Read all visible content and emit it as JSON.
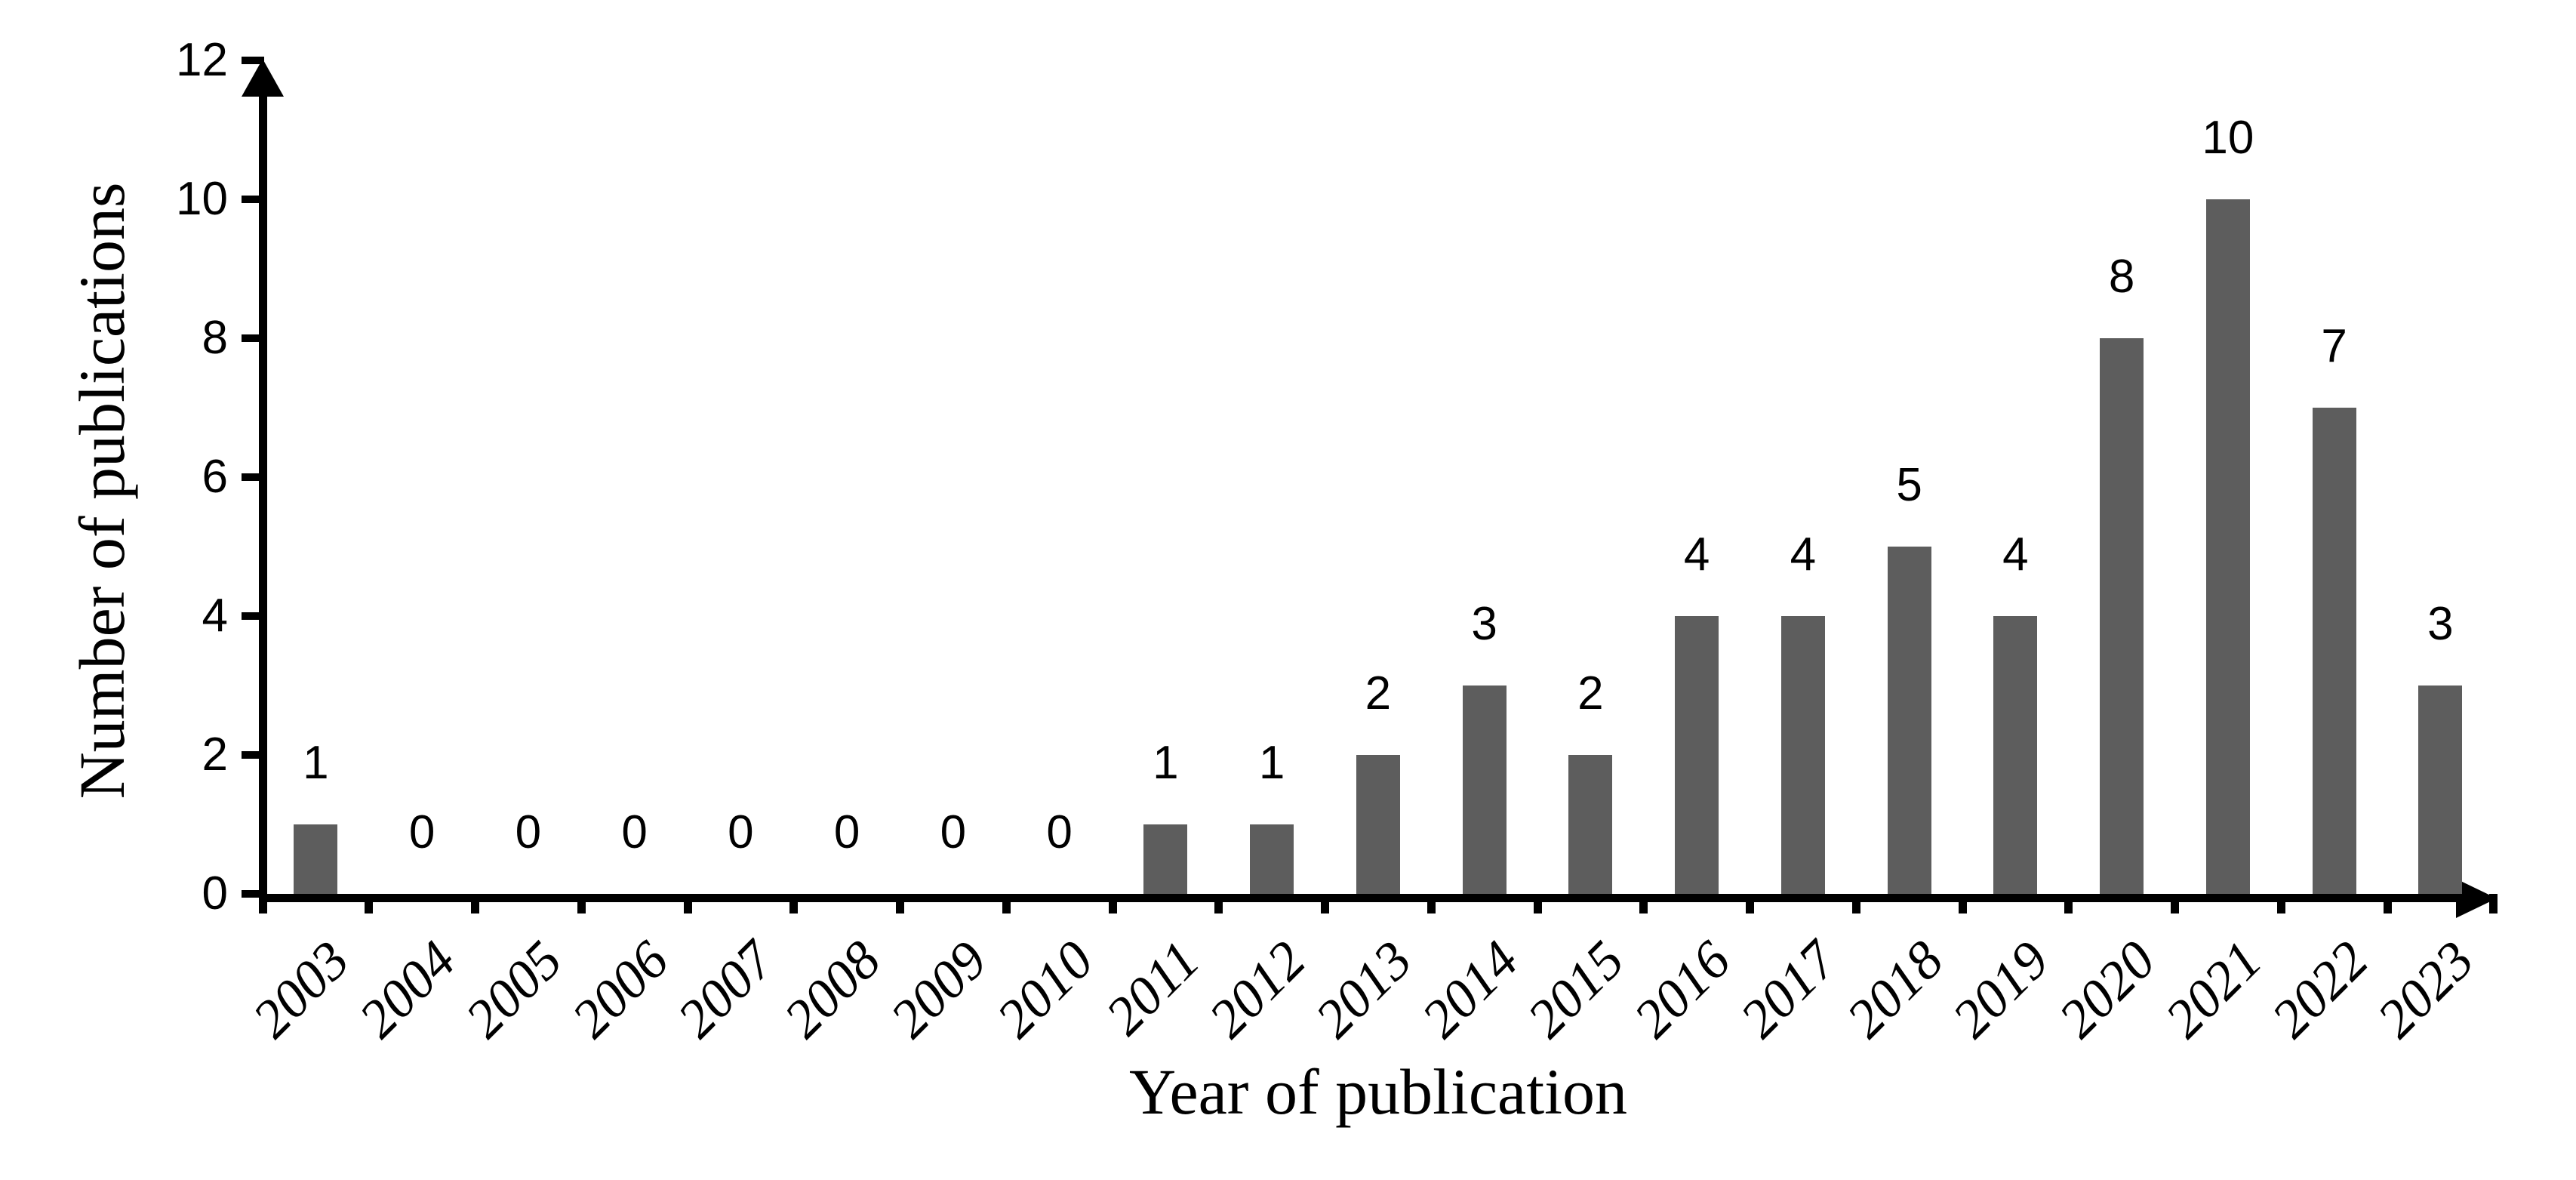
{
  "chart_data": {
    "type": "bar",
    "title": "",
    "xlabel": "Year of publication",
    "ylabel": "Number of publications",
    "categories": [
      "2003",
      "2004",
      "2005",
      "2006",
      "2007",
      "2008",
      "2009",
      "2010",
      "2011",
      "2012",
      "2013",
      "2014",
      "2015",
      "2016",
      "2017",
      "2018",
      "2019",
      "2020",
      "2021",
      "2022",
      "2023"
    ],
    "values": [
      1,
      0,
      0,
      0,
      0,
      0,
      0,
      0,
      1,
      1,
      2,
      3,
      2,
      4,
      4,
      5,
      4,
      8,
      10,
      7,
      3
    ],
    "data_labels_shown": true,
    "yticks": [
      0,
      2,
      4,
      6,
      8,
      10,
      12
    ],
    "ylim": [
      0,
      12
    ],
    "grid": false,
    "legend_position": "none",
    "bar_color": "#5d5d5d",
    "axis_color": "#000000",
    "text_color": "#000000",
    "background_color": "#ffffff",
    "x_axis_arrow": "right",
    "y_axis_arrow": "up"
  }
}
